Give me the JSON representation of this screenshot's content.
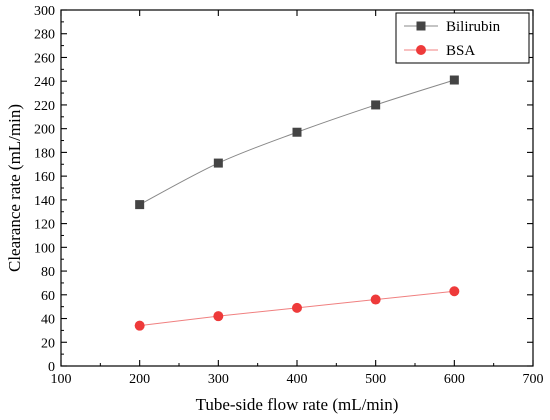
{
  "chart_data": {
    "type": "line",
    "title": "",
    "xlabel": "Tube-side flow rate (mL/min)",
    "ylabel": "Clearance rate (mL/min)",
    "xlim": [
      100,
      700
    ],
    "ylim": [
      0,
      300
    ],
    "xticks": [
      "100",
      "200",
      "300",
      "400",
      "500",
      "600",
      "700"
    ],
    "yticks": [
      "0",
      "20",
      "40",
      "60",
      "80",
      "100",
      "120",
      "140",
      "160",
      "180",
      "200",
      "220",
      "240",
      "260",
      "280",
      "300"
    ],
    "grid": false,
    "legend_position": "top-right",
    "x": [
      200,
      300,
      400,
      500,
      600
    ],
    "series": [
      {
        "name": "Bilirubin",
        "marker": "square",
        "color": "#444444",
        "line_color": "#888888",
        "values": [
          136,
          171,
          197,
          220,
          241
        ]
      },
      {
        "name": "BSA",
        "marker": "circle",
        "color": "#ee3a3a",
        "line_color": "#f08080",
        "values": [
          34,
          42,
          49,
          56,
          63
        ]
      }
    ]
  }
}
